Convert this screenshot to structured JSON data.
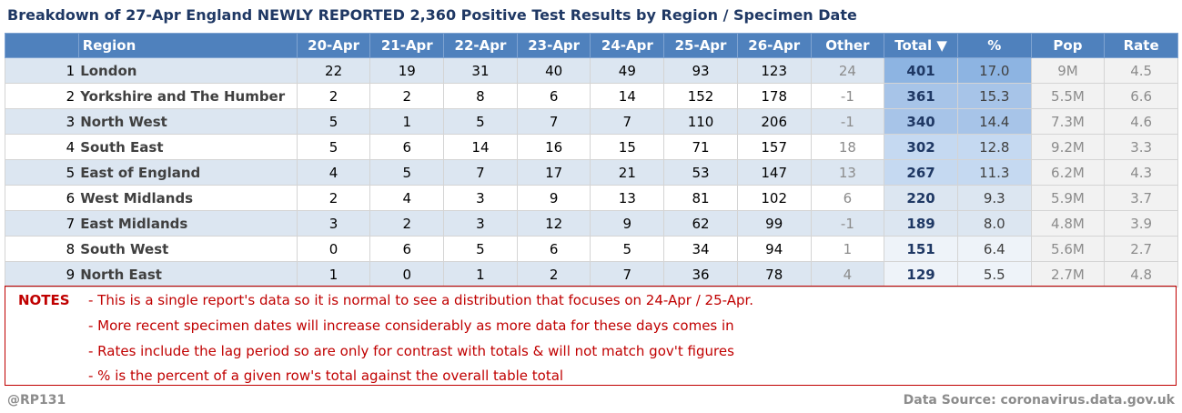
{
  "title": "Breakdown of 27-Apr England NEWLY REPORTED 2,360 Positive Test Results by Region / Specimen Date",
  "chart_data": {
    "type": "table",
    "columns": [
      "",
      "Region",
      "20-Apr",
      "21-Apr",
      "22-Apr",
      "23-Apr",
      "24-Apr",
      "25-Apr",
      "26-Apr",
      "Other",
      "Total ▼",
      "%",
      "Pop",
      "Rate"
    ],
    "rows": [
      [
        "1",
        "London",
        "22",
        "19",
        "31",
        "40",
        "49",
        "93",
        "123",
        "24",
        "401",
        "17.0",
        "9M",
        "4.5"
      ],
      [
        "2",
        "Yorkshire and The Humber",
        "2",
        "2",
        "8",
        "6",
        "14",
        "152",
        "178",
        "-1",
        "361",
        "15.3",
        "5.5M",
        "6.6"
      ],
      [
        "3",
        "North West",
        "5",
        "1",
        "5",
        "7",
        "7",
        "110",
        "206",
        "-1",
        "340",
        "14.4",
        "7.3M",
        "4.6"
      ],
      [
        "4",
        "South East",
        "5",
        "6",
        "14",
        "16",
        "15",
        "71",
        "157",
        "18",
        "302",
        "12.8",
        "9.2M",
        "3.3"
      ],
      [
        "5",
        "East of England",
        "4",
        "5",
        "7",
        "17",
        "21",
        "53",
        "147",
        "13",
        "267",
        "11.3",
        "6.2M",
        "4.3"
      ],
      [
        "6",
        "West Midlands",
        "2",
        "4",
        "3",
        "9",
        "13",
        "81",
        "102",
        "6",
        "220",
        "9.3",
        "5.9M",
        "3.7"
      ],
      [
        "7",
        "East Midlands",
        "3",
        "2",
        "3",
        "12",
        "9",
        "62",
        "99",
        "-1",
        "189",
        "8.0",
        "4.8M",
        "3.9"
      ],
      [
        "8",
        "South West",
        "0",
        "6",
        "5",
        "6",
        "5",
        "34",
        "94",
        "1",
        "151",
        "6.4",
        "5.6M",
        "2.7"
      ],
      [
        "9",
        "North East",
        "1",
        "0",
        "1",
        "2",
        "7",
        "36",
        "78",
        "4",
        "129",
        "5.5",
        "2.7M",
        "4.8"
      ]
    ]
  },
  "notes": {
    "label": "NOTES",
    "lines": [
      "- This is a single report's data so it is normal to see a distribution that focuses on 24-Apr / 25-Apr.",
      "- More recent specimen dates will increase considerably as more data for these days comes in",
      "- Rates include the lag period so are only for contrast with totals & will not match gov't figures",
      "- % is the percent of a given row's total against the overall table total"
    ]
  },
  "footer": {
    "author": "@RP131",
    "source": "Data Source: coronavirus.data.gov.uk"
  },
  "colors": {
    "header_bg": "#4f81bd",
    "band_bg": "#dce6f1",
    "title": "#1f3864",
    "notes": "#c00000"
  }
}
